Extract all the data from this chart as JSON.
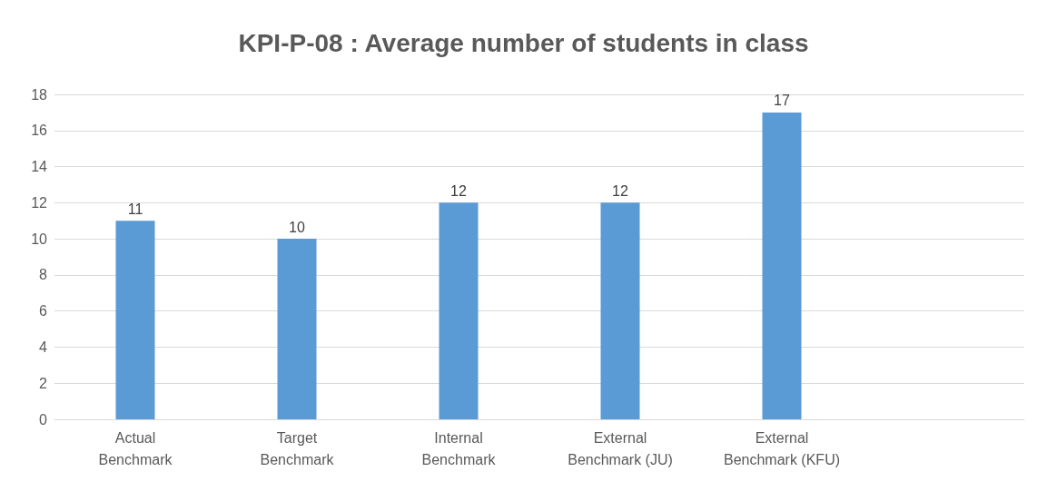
{
  "chart_data": {
    "type": "bar",
    "title": "KPI-P-08 : Average number of students in class",
    "categories": [
      "Actual\nBenchmark",
      "Target\nBenchmark",
      "Internal\nBenchmark",
      "External\nBenchmark (JU)",
      "External\nBenchmark (KFU)",
      null
    ],
    "values": [
      11,
      10,
      12,
      12,
      17,
      null
    ],
    "color": "#5b9bd5",
    "ylim": [
      0,
      18
    ],
    "yticks": [
      0,
      2,
      4,
      6,
      8,
      10,
      12,
      14,
      16,
      18
    ],
    "grid": "y",
    "data_labels": true
  }
}
